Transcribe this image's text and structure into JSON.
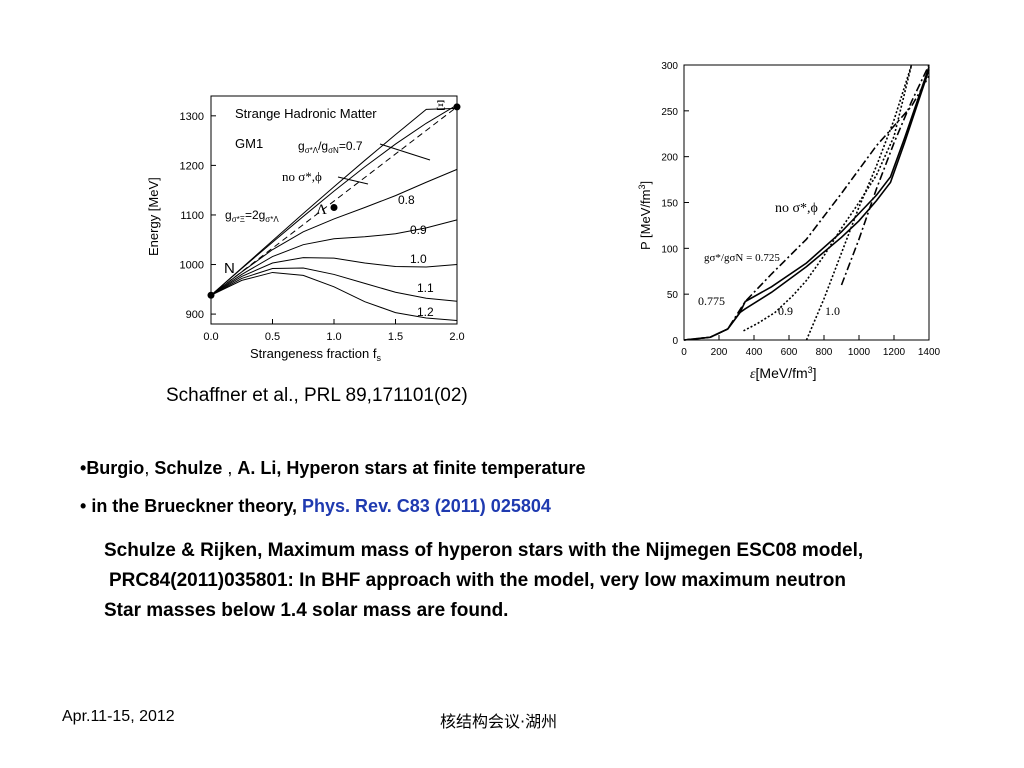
{
  "figures": {
    "left": {
      "title": "Strange Hadronic Matter",
      "model": "GM1",
      "ylabel": "Energy [MeV]",
      "xlabel_main": "Strangeness fraction f",
      "xlabel_sub": "s",
      "yticks": [
        "1300",
        "1200",
        "1100",
        "1000",
        "900"
      ],
      "xticks": [
        "0.0",
        "0.5",
        "1.0",
        "1.5",
        "2.0"
      ],
      "point_labels": {
        "N": "N",
        "Lambda": "Λ",
        "Xi": "Ξ"
      },
      "curve_labels": [
        "0.8",
        "0.9",
        "1.0",
        "1.1",
        "1.2"
      ],
      "annot_ratio": "g",
      "annot_ratio_full": "gσ*Λ/gσN=0.7",
      "annot_nosigma": "no σ*,ϕ",
      "annot_coupling": "gσ*Ξ=2gσ*Λ"
    },
    "right": {
      "ylabel": "P [MeV/fm³]",
      "xlabel": "ε[MeV/fm³]",
      "yticks": [
        "300",
        "250",
        "200",
        "150",
        "100",
        "50",
        "0"
      ],
      "xticks": [
        "0",
        "200",
        "400",
        "600",
        "800",
        "1000",
        "1200",
        "1400"
      ],
      "label_nosigma": "no σ*,ϕ",
      "label_ratio": "gσ*/gσN = 0.725",
      "label_0775": "0.775",
      "label_09": "0.9",
      "label_10": "1.0"
    }
  },
  "chart_data": [
    {
      "type": "line",
      "title": "Strange Hadronic Matter",
      "xlabel": "Strangeness fraction fs",
      "ylabel": "Energy [MeV]",
      "xlim": [
        0,
        2
      ],
      "ylim": [
        880,
        1340
      ],
      "series": [
        {
          "name": "0.7",
          "x": [
            0,
            0.25,
            0.5,
            0.75,
            1.0,
            1.25,
            1.5,
            1.75,
            2.0
          ],
          "values": [
            938,
            992,
            1045,
            1097,
            1148,
            1197,
            1243,
            1285,
            1322
          ]
        },
        {
          "name": "no σ*,ϕ",
          "x": [
            0,
            0.25,
            0.5,
            0.75,
            1.0,
            1.25,
            1.5,
            1.75,
            2.0
          ],
          "values": [
            938,
            993,
            1048,
            1103,
            1157,
            1210,
            1262,
            1313,
            1315
          ]
        },
        {
          "name": "0.8",
          "x": [
            0,
            0.25,
            0.5,
            0.75,
            1.0,
            1.25,
            1.5,
            1.75,
            2.0
          ],
          "values": [
            938,
            985,
            1030,
            1066,
            1092,
            1115,
            1139,
            1166,
            1192
          ]
        },
        {
          "name": "0.9",
          "x": [
            0,
            0.25,
            0.5,
            0.75,
            1.0,
            1.25,
            1.5,
            1.75,
            2.0
          ],
          "values": [
            938,
            980,
            1016,
            1040,
            1052,
            1056,
            1062,
            1074,
            1090
          ]
        },
        {
          "name": "1.0",
          "x": [
            0,
            0.25,
            0.5,
            0.75,
            1.0,
            1.25,
            1.5,
            1.75,
            2.0
          ],
          "values": [
            938,
            976,
            1003,
            1014,
            1013,
            1003,
            996,
            995,
            1000
          ]
        },
        {
          "name": "1.1",
          "x": [
            0,
            0.25,
            0.5,
            0.75,
            1.0,
            1.25,
            1.5,
            1.75,
            2.0
          ],
          "values": [
            938,
            972,
            992,
            993,
            980,
            962,
            944,
            932,
            926
          ]
        },
        {
          "name": "1.2",
          "x": [
            0,
            0.25,
            0.5,
            0.75,
            1.0,
            1.25,
            1.5,
            1.75,
            2.0
          ],
          "values": [
            938,
            968,
            984,
            978,
            955,
            925,
            903,
            892,
            887
          ]
        }
      ],
      "points": [
        {
          "label": "N",
          "x": 0,
          "y": 938
        },
        {
          "label": "Λ",
          "x": 1.0,
          "y": 1115
        },
        {
          "label": "Ξ",
          "x": 2.0,
          "y": 1318
        }
      ]
    },
    {
      "type": "line",
      "xlabel": "ε[MeV/fm³]",
      "ylabel": "P [MeV/fm³]",
      "xlim": [
        0,
        1400
      ],
      "ylim": [
        0,
        300
      ],
      "series": [
        {
          "name": "0.725",
          "style": "solid",
          "x": [
            0,
            150,
            250,
            320,
            350,
            500,
            700,
            900,
            1000,
            1100,
            1180,
            1260,
            1400
          ],
          "values": [
            0,
            3,
            12,
            30,
            34,
            52,
            80,
            112,
            130,
            152,
            172,
            215,
            295
          ]
        },
        {
          "name": "0.775",
          "style": "solid",
          "x": [
            0,
            150,
            250,
            320,
            350,
            500,
            700,
            900,
            1000,
            1100,
            1180,
            1260,
            1400
          ],
          "values": [
            0,
            3,
            12,
            30,
            42,
            58,
            84,
            118,
            138,
            158,
            178,
            220,
            298
          ]
        },
        {
          "name": "no σ*,ϕ",
          "style": "dashdot",
          "x": [
            0,
            150,
            250,
            350,
            500,
            700,
            900,
            1100,
            1300,
            1400
          ],
          "values": [
            0,
            3,
            12,
            42,
            72,
            110,
            160,
            212,
            255,
            288
          ]
        },
        {
          "name": "0.9",
          "style": "dotted",
          "x": [
            340,
            420,
            520,
            620,
            700,
            800,
            900,
            1000,
            1100,
            1200,
            1300
          ],
          "values": [
            10,
            18,
            30,
            48,
            65,
            92,
            122,
            150,
            180,
            222,
            300
          ]
        },
        {
          "name": "1.0",
          "style": "dotted",
          "x": [
            700,
            800,
            900,
            1000,
            1100,
            1200,
            1300
          ],
          "values": [
            0,
            45,
            95,
            145,
            190,
            240,
            300
          ]
        },
        {
          "name": "1.0 dashdot",
          "style": "dashdot",
          "x": [
            900,
            1000,
            1100,
            1200,
            1300,
            1400
          ],
          "values": [
            60,
            110,
            165,
            215,
            260,
            300
          ]
        }
      ]
    }
  ],
  "text": {
    "ref1": "Schaffner et al., PRL 89,171101(02)",
    "l1_bullet": "•",
    "l1_a": "Burgio",
    "l1_b": ", ",
    "l1_c": "Schulze",
    "l1_d": " , ",
    "l1_e": "A. Li, Hyperon stars at finite temperature",
    "l2_bullet": "• ",
    "l2_a": "in the Brueckner theory, ",
    "l2_b": "Phys. Rev. C83 (2011) 025804",
    "l3": "Schulze & Rijken, Maximum mass of hyperon stars with the Nijmegen ESC08 model,",
    "l4": "PRC84(2011)035801: In BHF approach with the model, very low maximum neutron",
    "l5": "Star masses below 1.4 solar mass are found."
  },
  "footer": {
    "left": "Apr.11-15, 2012",
    "center": "核结构会议·湖州"
  }
}
